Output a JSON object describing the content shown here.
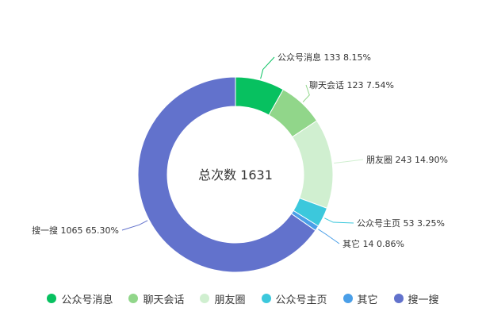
{
  "chart_data": {
    "type": "pie",
    "variant": "donut",
    "center_label": "总次数 1631",
    "total": 1631,
    "slices": [
      {
        "name": "公众号消息",
        "value": 133,
        "percent": "8.15%",
        "label": "公众号消息 133 8.15%",
        "color": "#07c160"
      },
      {
        "name": "聊天会话",
        "value": 123,
        "percent": "7.54%",
        "label": "聊天会话 123 7.54%",
        "color": "#91d68a"
      },
      {
        "name": "朋友圈",
        "value": 243,
        "percent": "14.90%",
        "label": "朋友圈 243 14.90%",
        "color": "#d0efd0"
      },
      {
        "name": "公众号主页",
        "value": 53,
        "percent": "3.25%",
        "label": "公众号主页 53 3.25%",
        "color": "#3cc8dc"
      },
      {
        "name": "其它",
        "value": 14,
        "percent": "0.86%",
        "label": "其它 14 0.86%",
        "color": "#4a9fe8"
      },
      {
        "name": "搜一搜",
        "value": 1065,
        "percent": "65.30%",
        "label": "搜一搜 1065 65.30%",
        "color": "#6272cc"
      }
    ],
    "legend_position": "bottom"
  }
}
